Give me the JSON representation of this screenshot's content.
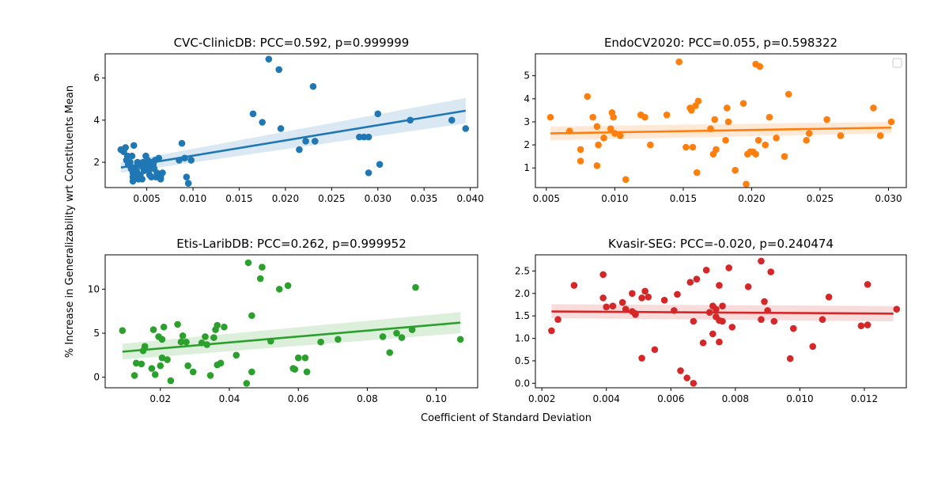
{
  "figure": {
    "xlabel": "Coefficient of Standard Deviation",
    "ylabel": "% Increase in Generalizability wrt Constituents Mean"
  },
  "chart_data": [
    {
      "type": "scatter",
      "title": "CVC-ClinicDB: PCC=0.592, p=0.999999",
      "color": "#1f77b4",
      "xlim": [
        0.0005,
        0.0408
      ],
      "ylim": [
        0.8,
        7.15
      ],
      "xticks": [
        0.005,
        0.01,
        0.015,
        0.02,
        0.025,
        0.03,
        0.035,
        0.04
      ],
      "xtick_labels": [
        "0.005",
        "0.010",
        "0.015",
        "0.020",
        "0.025",
        "0.030",
        "0.035",
        "0.040"
      ],
      "yticks": [
        2,
        4,
        6
      ],
      "ytick_labels": [
        "2",
        "4",
        "6"
      ],
      "legend": false,
      "fit": {
        "x": [
          0.0022,
          0.0395
        ],
        "y": [
          1.75,
          4.45
        ],
        "ci_lo": [
          1.5,
          3.85
        ],
        "ci_hi": [
          2.0,
          5.05
        ]
      },
      "points": [
        [
          0.0022,
          2.6
        ],
        [
          0.0025,
          2.5
        ],
        [
          0.0027,
          2.7
        ],
        [
          0.0028,
          2.1
        ],
        [
          0.0029,
          2.3
        ],
        [
          0.003,
          1.9
        ],
        [
          0.0032,
          2.0
        ],
        [
          0.0033,
          1.7
        ],
        [
          0.0034,
          2.3
        ],
        [
          0.0035,
          1.5
        ],
        [
          0.0035,
          1.3
        ],
        [
          0.0036,
          2.8
        ],
        [
          0.0037,
          1.4
        ],
        [
          0.0038,
          1.7
        ],
        [
          0.0039,
          1.6
        ],
        [
          0.004,
          2.0
        ],
        [
          0.0041,
          1.2
        ],
        [
          0.0042,
          1.9
        ],
        [
          0.0043,
          1.4
        ],
        [
          0.0045,
          1.8
        ],
        [
          0.0046,
          2.0
        ],
        [
          0.0047,
          1.6
        ],
        [
          0.0048,
          1.9
        ],
        [
          0.0049,
          2.3
        ],
        [
          0.005,
          1.8
        ],
        [
          0.0051,
          2.1
        ],
        [
          0.0052,
          1.6
        ],
        [
          0.0053,
          1.4
        ],
        [
          0.0054,
          1.7
        ],
        [
          0.0055,
          2.0
        ],
        [
          0.0056,
          1.8
        ],
        [
          0.0057,
          1.9
        ],
        [
          0.0058,
          1.7
        ],
        [
          0.0059,
          2.1
        ],
        [
          0.006,
          1.3
        ],
        [
          0.0061,
          1.5
        ],
        [
          0.0063,
          2.2
        ],
        [
          0.0064,
          1.4
        ],
        [
          0.0065,
          1.3
        ],
        [
          0.0067,
          1.5
        ],
        [
          0.0035,
          1.1
        ],
        [
          0.0045,
          1.2
        ],
        [
          0.0055,
          1.3
        ],
        [
          0.0065,
          1.2
        ],
        [
          0.0085,
          2.1
        ],
        [
          0.0088,
          2.9
        ],
        [
          0.0091,
          2.2
        ],
        [
          0.0093,
          1.3
        ],
        [
          0.0095,
          1.0
        ],
        [
          0.0098,
          2.1
        ],
        [
          0.0165,
          4.3
        ],
        [
          0.0175,
          3.9
        ],
        [
          0.0182,
          6.9
        ],
        [
          0.0193,
          6.4
        ],
        [
          0.0195,
          3.6
        ],
        [
          0.0215,
          2.6
        ],
        [
          0.0222,
          3.0
        ],
        [
          0.023,
          5.6
        ],
        [
          0.0232,
          3.0
        ],
        [
          0.028,
          3.2
        ],
        [
          0.0285,
          3.2
        ],
        [
          0.029,
          3.2
        ],
        [
          0.029,
          1.5
        ],
        [
          0.03,
          4.3
        ],
        [
          0.0302,
          1.9
        ],
        [
          0.0335,
          4.0
        ],
        [
          0.038,
          4.0
        ],
        [
          0.0395,
          3.6
        ]
      ]
    },
    {
      "type": "scatter",
      "title": "EndoCV2020: PCC=0.055, p=0.598322",
      "color": "#ff7f0e",
      "xlim": [
        0.0042,
        0.0313
      ],
      "ylim": [
        0.15,
        5.95
      ],
      "xticks": [
        0.005,
        0.01,
        0.015,
        0.02,
        0.025,
        0.03
      ],
      "xtick_labels": [
        "0.005",
        "0.010",
        "0.015",
        "0.020",
        "0.025",
        "0.030"
      ],
      "yticks": [
        1,
        2,
        3,
        4,
        5
      ],
      "ytick_labels": [
        "1",
        "2",
        "3",
        "4",
        "5"
      ],
      "legend": true,
      "fit": {
        "x": [
          0.0053,
          0.0302
        ],
        "y": [
          2.5,
          2.75
        ],
        "ci_lo": [
          2.2,
          2.5
        ],
        "ci_hi": [
          2.8,
          3.0
        ]
      },
      "points": [
        [
          0.0053,
          3.2
        ],
        [
          0.0067,
          2.6
        ],
        [
          0.0075,
          1.8
        ],
        [
          0.0075,
          1.3
        ],
        [
          0.008,
          4.1
        ],
        [
          0.0084,
          3.2
        ],
        [
          0.0087,
          2.8
        ],
        [
          0.0087,
          1.1
        ],
        [
          0.0088,
          2.0
        ],
        [
          0.0092,
          2.3
        ],
        [
          0.0097,
          2.7
        ],
        [
          0.0098,
          3.4
        ],
        [
          0.0099,
          3.2
        ],
        [
          0.01,
          2.5
        ],
        [
          0.0104,
          2.4
        ],
        [
          0.0108,
          0.5
        ],
        [
          0.0119,
          3.3
        ],
        [
          0.0122,
          3.2
        ],
        [
          0.0126,
          2.0
        ],
        [
          0.0138,
          3.3
        ],
        [
          0.0147,
          5.6
        ],
        [
          0.0152,
          1.9
        ],
        [
          0.0155,
          3.6
        ],
        [
          0.0156,
          3.5
        ],
        [
          0.0157,
          1.9
        ],
        [
          0.0159,
          3.7
        ],
        [
          0.016,
          0.8
        ],
        [
          0.0161,
          3.9
        ],
        [
          0.017,
          2.7
        ],
        [
          0.0172,
          1.6
        ],
        [
          0.0173,
          3.1
        ],
        [
          0.0174,
          1.8
        ],
        [
          0.0181,
          2.2
        ],
        [
          0.0182,
          3.6
        ],
        [
          0.0183,
          3.0
        ],
        [
          0.0188,
          0.9
        ],
        [
          0.0194,
          3.8
        ],
        [
          0.0196,
          0.3
        ],
        [
          0.0197,
          1.6
        ],
        [
          0.0199,
          1.7
        ],
        [
          0.0201,
          1.7
        ],
        [
          0.0203,
          1.6
        ],
        [
          0.0203,
          5.5
        ],
        [
          0.0205,
          2.2
        ],
        [
          0.0206,
          5.4
        ],
        [
          0.021,
          2.0
        ],
        [
          0.0213,
          3.2
        ],
        [
          0.0218,
          2.3
        ],
        [
          0.0224,
          1.5
        ],
        [
          0.0227,
          4.2
        ],
        [
          0.024,
          2.2
        ],
        [
          0.0242,
          2.5
        ],
        [
          0.0255,
          3.1
        ],
        [
          0.0265,
          2.4
        ],
        [
          0.0289,
          3.6
        ],
        [
          0.0294,
          2.4
        ],
        [
          0.0302,
          3.0
        ]
      ]
    },
    {
      "type": "scatter",
      "title": "Etis-LaribDB: PCC=0.262, p=0.999952",
      "color": "#2ca02c",
      "xlim": [
        0.004,
        0.112
      ],
      "ylim": [
        -1.2,
        13.9
      ],
      "xticks": [
        0.02,
        0.04,
        0.06,
        0.08,
        0.1
      ],
      "xtick_labels": [
        "0.02",
        "0.04",
        "0.06",
        "0.08",
        "0.10"
      ],
      "yticks": [
        0,
        5,
        10
      ],
      "ytick_labels": [
        "0",
        "5",
        "10"
      ],
      "legend": false,
      "fit": {
        "x": [
          0.009,
          0.107
        ],
        "y": [
          2.9,
          6.2
        ],
        "ci_lo": [
          2.0,
          5.0
        ],
        "ci_hi": [
          3.8,
          7.4
        ]
      },
      "points": [
        [
          0.009,
          5.3
        ],
        [
          0.0125,
          0.2
        ],
        [
          0.013,
          1.6
        ],
        [
          0.0145,
          1.5
        ],
        [
          0.015,
          3.0
        ],
        [
          0.0155,
          3.5
        ],
        [
          0.0175,
          1.0
        ],
        [
          0.018,
          5.4
        ],
        [
          0.0185,
          0.3
        ],
        [
          0.0195,
          4.6
        ],
        [
          0.02,
          1.3
        ],
        [
          0.0205,
          2.2
        ],
        [
          0.0205,
          4.3
        ],
        [
          0.021,
          5.7
        ],
        [
          0.022,
          2.0
        ],
        [
          0.023,
          -0.4
        ],
        [
          0.025,
          6.0
        ],
        [
          0.026,
          4.0
        ],
        [
          0.0265,
          4.7
        ],
        [
          0.0275,
          4.0
        ],
        [
          0.028,
          1.3
        ],
        [
          0.0295,
          0.6
        ],
        [
          0.032,
          3.9
        ],
        [
          0.033,
          4.6
        ],
        [
          0.0335,
          3.7
        ],
        [
          0.0345,
          0.2
        ],
        [
          0.0355,
          4.5
        ],
        [
          0.036,
          5.4
        ],
        [
          0.0365,
          5.9
        ],
        [
          0.0365,
          1.4
        ],
        [
          0.0375,
          1.6
        ],
        [
          0.0385,
          5.7
        ],
        [
          0.042,
          2.5
        ],
        [
          0.045,
          -0.7
        ],
        [
          0.0455,
          13.0
        ],
        [
          0.0465,
          7.0
        ],
        [
          0.0465,
          0.6
        ],
        [
          0.049,
          11.2
        ],
        [
          0.0495,
          12.5
        ],
        [
          0.052,
          4.1
        ],
        [
          0.0545,
          10.0
        ],
        [
          0.057,
          10.4
        ],
        [
          0.0585,
          1.0
        ],
        [
          0.059,
          0.9
        ],
        [
          0.06,
          2.2
        ],
        [
          0.062,
          2.2
        ],
        [
          0.0625,
          0.6
        ],
        [
          0.0665,
          4.0
        ],
        [
          0.0715,
          4.3
        ],
        [
          0.0845,
          4.6
        ],
        [
          0.0865,
          2.8
        ],
        [
          0.0885,
          5.0
        ],
        [
          0.09,
          4.5
        ],
        [
          0.093,
          5.4
        ],
        [
          0.094,
          10.2
        ],
        [
          0.107,
          4.3
        ]
      ]
    },
    {
      "type": "scatter",
      "title": "Kvasir-SEG: PCC=-0.020, p=0.240474",
      "color": "#d62728",
      "xlim": [
        0.0018,
        0.0133
      ],
      "ylim": [
        -0.1,
        2.86
      ],
      "xticks": [
        0.002,
        0.004,
        0.006,
        0.008,
        0.01,
        0.012
      ],
      "xtick_labels": [
        "0.002",
        "0.004",
        "0.006",
        "0.008",
        "0.010",
        "0.012"
      ],
      "yticks": [
        0.0,
        0.5,
        1.0,
        1.5,
        2.0,
        2.5
      ],
      "ytick_labels": [
        "0.0",
        "0.5",
        "1.0",
        "1.5",
        "2.0",
        "2.5"
      ],
      "legend": false,
      "fit": {
        "x": [
          0.0023,
          0.0129
        ],
        "y": [
          1.6,
          1.55
        ],
        "ci_lo": [
          1.45,
          1.38
        ],
        "ci_hi": [
          1.76,
          1.72
        ]
      },
      "points": [
        [
          0.0023,
          1.17
        ],
        [
          0.0025,
          1.42
        ],
        [
          0.003,
          2.18
        ],
        [
          0.0039,
          2.42
        ],
        [
          0.0039,
          1.9
        ],
        [
          0.004,
          1.7
        ],
        [
          0.0042,
          1.72
        ],
        [
          0.0045,
          1.8
        ],
        [
          0.0046,
          1.65
        ],
        [
          0.0048,
          1.6
        ],
        [
          0.0048,
          2.0
        ],
        [
          0.0049,
          1.55
        ],
        [
          0.0049,
          1.53
        ],
        [
          0.0051,
          1.9
        ],
        [
          0.0051,
          0.56
        ],
        [
          0.0052,
          2.05
        ],
        [
          0.0053,
          1.92
        ],
        [
          0.0055,
          0.75
        ],
        [
          0.0058,
          1.85
        ],
        [
          0.0061,
          1.62
        ],
        [
          0.0062,
          1.98
        ],
        [
          0.0063,
          0.28
        ],
        [
          0.0065,
          0.12
        ],
        [
          0.0066,
          2.25
        ],
        [
          0.0067,
          1.38
        ],
        [
          0.0067,
          0.0
        ],
        [
          0.0068,
          2.32
        ],
        [
          0.007,
          0.9
        ],
        [
          0.0071,
          2.52
        ],
        [
          0.0072,
          1.58
        ],
        [
          0.0073,
          1.72
        ],
        [
          0.0073,
          1.1
        ],
        [
          0.0074,
          1.65
        ],
        [
          0.0074,
          1.48
        ],
        [
          0.0075,
          2.18
        ],
        [
          0.0075,
          1.4
        ],
        [
          0.0075,
          0.92
        ],
        [
          0.0076,
          1.72
        ],
        [
          0.0076,
          1.38
        ],
        [
          0.0078,
          2.57
        ],
        [
          0.0079,
          1.25
        ],
        [
          0.0084,
          2.15
        ],
        [
          0.0088,
          2.72
        ],
        [
          0.0088,
          1.42
        ],
        [
          0.0089,
          1.82
        ],
        [
          0.009,
          1.62
        ],
        [
          0.0091,
          2.48
        ],
        [
          0.0092,
          1.38
        ],
        [
          0.0097,
          0.55
        ],
        [
          0.0098,
          1.22
        ],
        [
          0.0104,
          0.82
        ],
        [
          0.0107,
          1.42
        ],
        [
          0.0109,
          1.92
        ],
        [
          0.0119,
          1.28
        ],
        [
          0.0121,
          2.2
        ],
        [
          0.0121,
          1.3
        ],
        [
          0.013,
          1.65
        ]
      ]
    }
  ]
}
